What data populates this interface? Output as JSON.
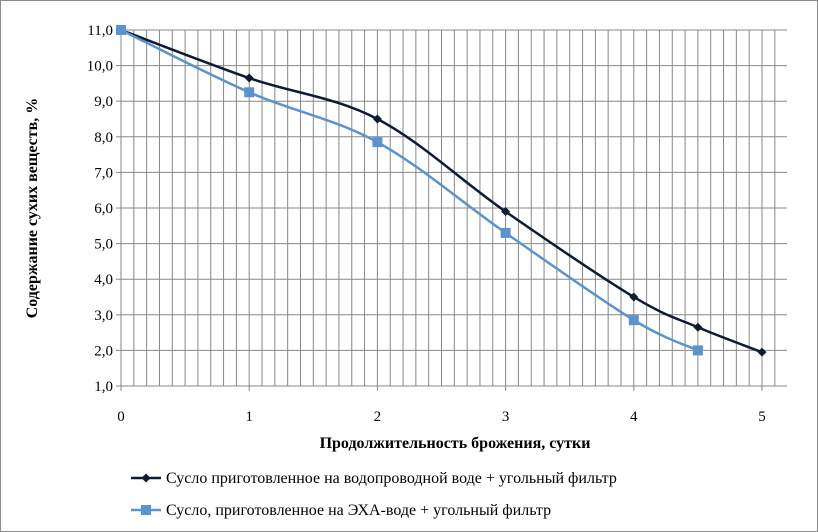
{
  "chart_data": {
    "type": "line",
    "xlabel": "Продолжительность брожения, сутки",
    "ylabel": "Содержание сухих веществ, %",
    "xlim": [
      0,
      5.2
    ],
    "ylim": [
      1.0,
      11.0
    ],
    "x_ticks": [
      "0",
      "1",
      "2",
      "3",
      "4",
      "5"
    ],
    "y_ticks": [
      "1,0",
      "2,0",
      "3,0",
      "4,0",
      "5,0",
      "6,0",
      "7,0",
      "8,0",
      "9,0",
      "10,0",
      "11,0"
    ],
    "grid": true,
    "legend_position": "bottom",
    "series": [
      {
        "name": "Сусло приготовленное на водопроводной воде + угольный фильтр",
        "color": "#0d1b33",
        "marker": "diamond",
        "points": [
          [
            0,
            11.0
          ],
          [
            1,
            9.65
          ],
          [
            2,
            8.5
          ],
          [
            3,
            5.9
          ],
          [
            4,
            3.5
          ],
          [
            4.5,
            2.65
          ],
          [
            5,
            1.95
          ]
        ]
      },
      {
        "name": "Сусло, приготовленное на ЭХА-воде + угольный фильтр",
        "color": "#5b93cc",
        "marker": "square",
        "points": [
          [
            0,
            11.0
          ],
          [
            1,
            9.25
          ],
          [
            2,
            7.85
          ],
          [
            3,
            5.3
          ],
          [
            4,
            2.85
          ],
          [
            4.5,
            2.0
          ]
        ]
      }
    ]
  }
}
